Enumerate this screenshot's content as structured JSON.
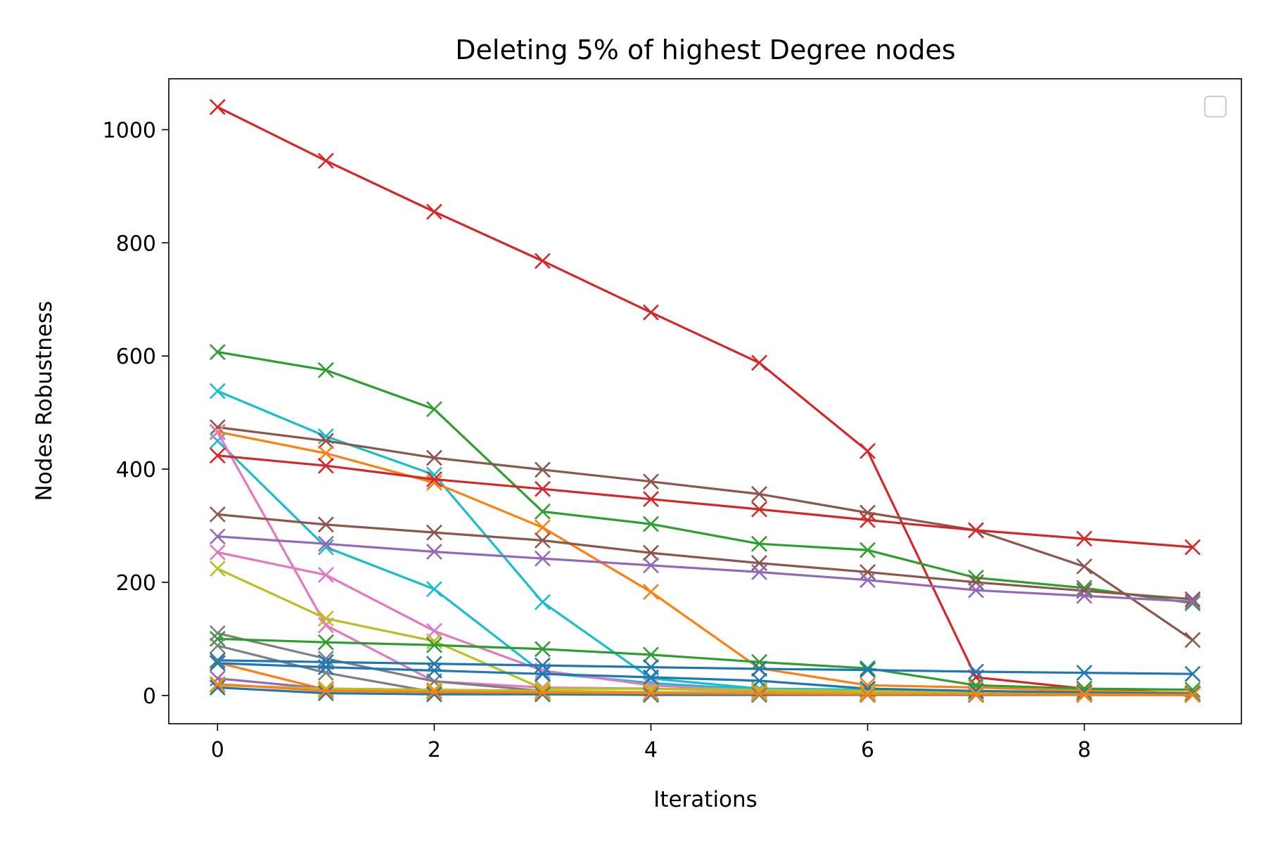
{
  "chart_data": {
    "type": "line",
    "title": "Deleting 5% of highest Degree nodes",
    "xlabel": "Iterations",
    "ylabel": "Nodes Robustness",
    "xlim": [
      -0.45,
      9.45
    ],
    "ylim": [
      -50,
      1090
    ],
    "xticks": [
      0,
      2,
      4,
      6,
      8
    ],
    "yticks": [
      0,
      200,
      400,
      600,
      800,
      1000
    ],
    "grid": false,
    "legend": {
      "placement": "top-right",
      "entries": []
    },
    "marker": "x",
    "x": [
      0,
      1,
      2,
      3,
      4,
      5,
      6,
      7,
      8,
      9
    ],
    "series": [
      {
        "color": "#d62728",
        "values": [
          1040,
          945,
          855,
          768,
          677,
          588,
          432,
          32,
          12,
          3
        ]
      },
      {
        "color": "#2ca02c",
        "values": [
          607,
          575,
          506,
          325,
          303,
          268,
          257,
          208,
          190,
          163
        ]
      },
      {
        "color": "#17becf",
        "values": [
          538,
          458,
          390,
          165,
          30,
          12,
          10,
          8,
          5,
          3
        ]
      },
      {
        "color": "#8c564b",
        "values": [
          474,
          450,
          420,
          399,
          378,
          356,
          323,
          292,
          228,
          98
        ]
      },
      {
        "color": "#ff7f0e",
        "values": [
          466,
          428,
          376,
          297,
          183,
          48,
          18,
          14,
          8,
          5
        ]
      },
      {
        "color": "#17becf",
        "values": [
          450,
          262,
          188,
          40,
          22,
          10,
          8,
          5,
          3,
          2
        ]
      },
      {
        "color": "#e377c2",
        "values": [
          465,
          124,
          25,
          14,
          12,
          8,
          5,
          3,
          2,
          1
        ]
      },
      {
        "color": "#d62728",
        "values": [
          424,
          406,
          382,
          365,
          347,
          329,
          310,
          292,
          277,
          262
        ]
      },
      {
        "color": "#8c564b",
        "values": [
          320,
          302,
          288,
          274,
          252,
          234,
          218,
          200,
          185,
          170
        ]
      },
      {
        "color": "#9467bd",
        "values": [
          281,
          268,
          254,
          242,
          230,
          218,
          204,
          186,
          176,
          166
        ]
      },
      {
        "color": "#e377c2",
        "values": [
          253,
          213,
          114,
          44,
          18,
          8,
          5,
          3,
          2,
          1
        ]
      },
      {
        "color": "#bcbd22",
        "values": [
          224,
          136,
          96,
          12,
          12,
          10,
          8,
          6,
          4,
          3
        ]
      },
      {
        "color": "#7f7f7f",
        "values": [
          110,
          65,
          25,
          8,
          5,
          4,
          3,
          2,
          1,
          1
        ]
      },
      {
        "color": "#2ca02c",
        "values": [
          100,
          94,
          89,
          82,
          72,
          59,
          48,
          18,
          12,
          10
        ]
      },
      {
        "color": "#7f7f7f",
        "values": [
          88,
          40,
          6,
          4,
          3,
          2,
          2,
          1,
          1,
          1
        ]
      },
      {
        "color": "#1f77b4",
        "values": [
          62,
          59,
          56,
          53,
          50,
          47,
          45,
          42,
          40,
          38
        ]
      },
      {
        "color": "#ff7f0e",
        "values": [
          58,
          10,
          8,
          6,
          5,
          4,
          3,
          2,
          2,
          1
        ]
      },
      {
        "color": "#1f77b4",
        "values": [
          57,
          50,
          44,
          38,
          32,
          26,
          12,
          8,
          5,
          3
        ]
      },
      {
        "color": "#9467bd",
        "values": [
          30,
          12,
          10,
          8,
          6,
          5,
          4,
          3,
          2,
          1
        ]
      },
      {
        "color": "#bcbd22",
        "values": [
          18,
          12,
          10,
          8,
          6,
          5,
          4,
          3,
          2,
          1
        ]
      },
      {
        "color": "#1f77b4",
        "values": [
          14,
          4,
          2,
          2,
          1,
          1,
          1,
          1,
          1,
          1
        ]
      },
      {
        "color": "#ff7f0e",
        "values": [
          20,
          8,
          6,
          5,
          4,
          3,
          2,
          2,
          1,
          1
        ]
      }
    ]
  }
}
